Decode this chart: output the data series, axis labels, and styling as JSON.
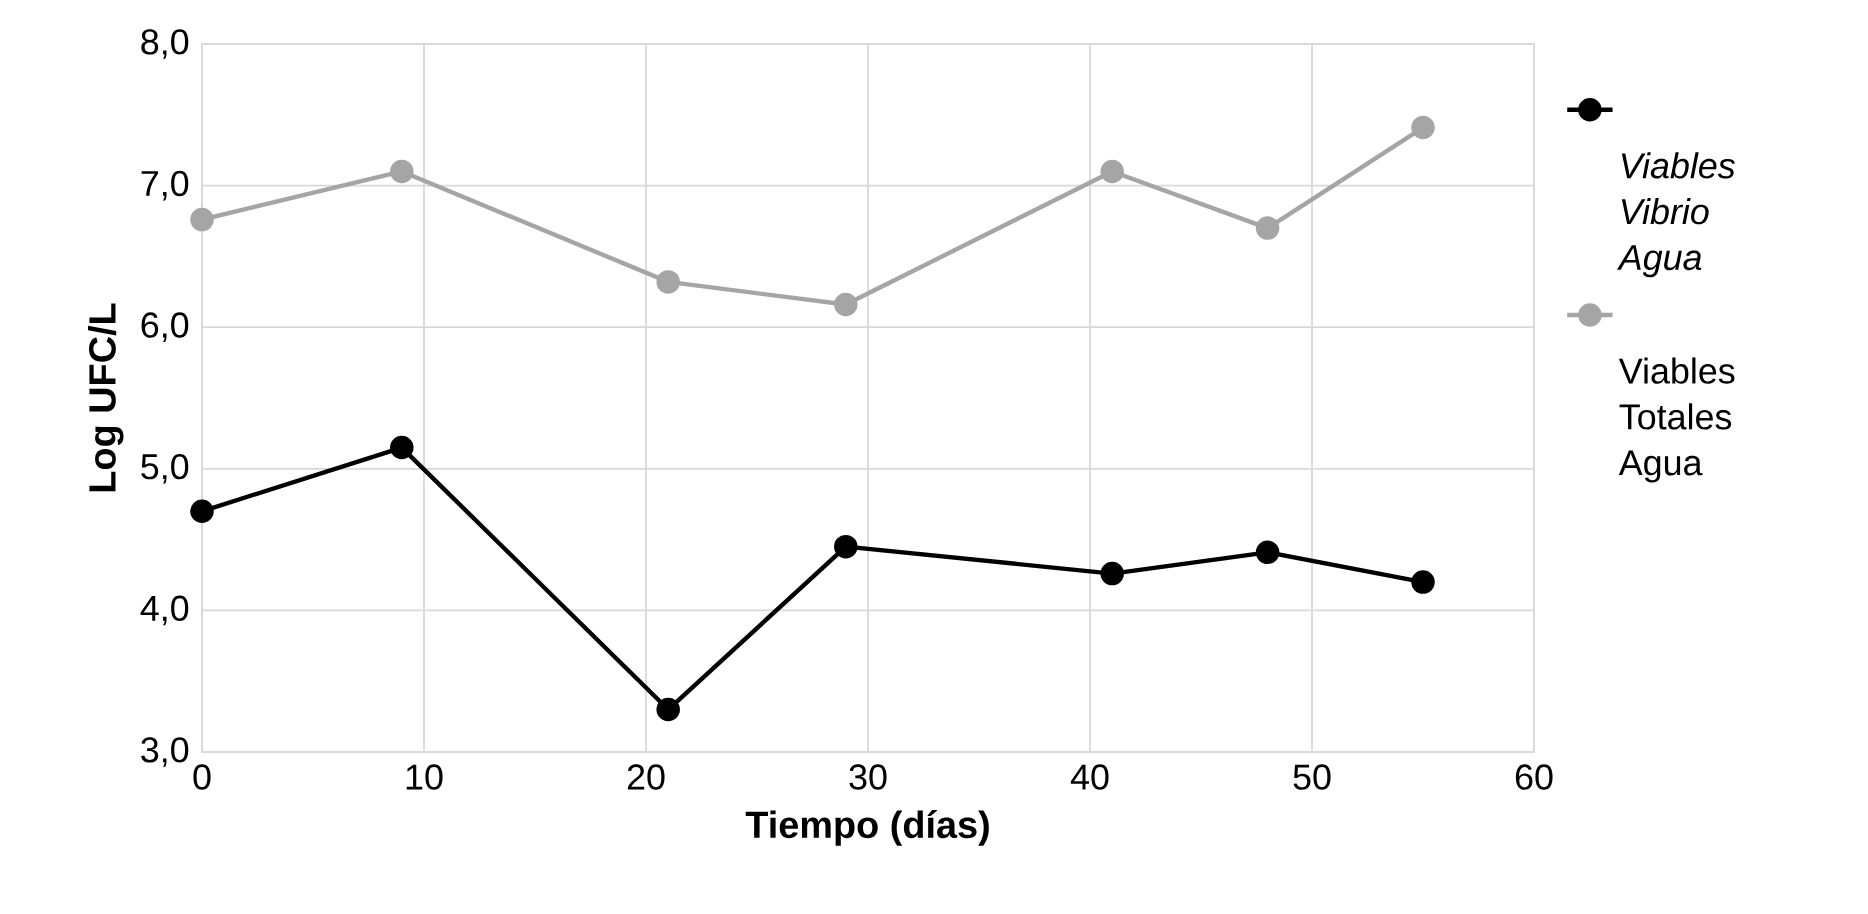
{
  "chart_data": {
    "type": "line",
    "xlabel": "Tiempo (días)",
    "ylabel": "Log UFC/L",
    "x": [
      0,
      9,
      21,
      29,
      41,
      48,
      55
    ],
    "series": [
      {
        "name": "*Viables Vibrio Agua*",
        "color": "#000000",
        "values": [
          4.7,
          5.15,
          3.3,
          4.45,
          4.26,
          4.41,
          4.2
        ]
      },
      {
        "name": "Viables Totales Agua",
        "color": "#a5a5a5",
        "values": [
          6.76,
          7.1,
          6.32,
          6.16,
          7.1,
          6.7,
          7.41
        ]
      }
    ],
    "xlim": [
      0,
      60
    ],
    "xticks": [
      0,
      10,
      20,
      30,
      40,
      50,
      60
    ],
    "ylim": [
      3,
      8
    ],
    "yticks": [
      {
        "value": 3,
        "label": "3,0"
      },
      {
        "value": 4,
        "label": "4,0"
      },
      {
        "value": 5,
        "label": "5,0"
      },
      {
        "value": 6,
        "label": "6,0"
      },
      {
        "value": 7,
        "label": "7,0"
      },
      {
        "value": 8,
        "label": "8,0"
      }
    ],
    "grid": true,
    "legend": "right",
    "marker": "circle",
    "line_style": "solid"
  }
}
